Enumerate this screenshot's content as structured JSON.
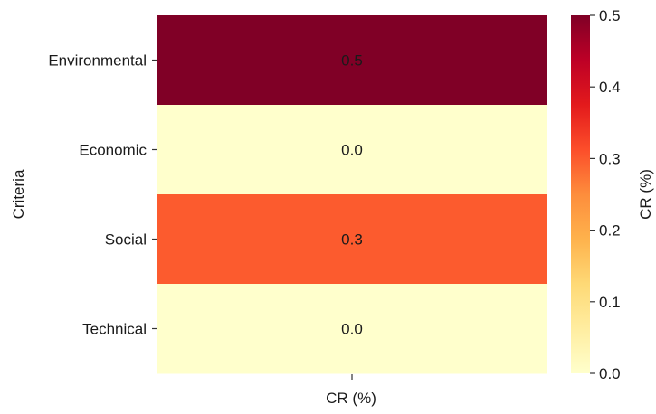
{
  "chart_data": {
    "type": "heatmap",
    "title": "",
    "xlabel": "CR (%)",
    "ylabel": "Criteria",
    "x_categories": [
      ""
    ],
    "y_categories": [
      "Environmental",
      "Economic",
      "Social",
      "Technical"
    ],
    "values": [
      [
        0.5
      ],
      [
        0.0
      ],
      [
        0.3
      ],
      [
        0.0
      ]
    ],
    "cell_labels": [
      "0.5",
      "0.0",
      "0.3",
      "0.0"
    ],
    "colorbar": {
      "label": "CR (%)",
      "range": [
        0.0,
        0.5
      ],
      "ticks": [
        0.0,
        0.1,
        0.2,
        0.3,
        0.4,
        0.5
      ],
      "tick_labels": [
        "0.0",
        "0.1",
        "0.2",
        "0.3",
        "0.4",
        "0.5"
      ],
      "colormap": "YlOrRd",
      "colors": [
        "#ffffcc",
        "#ffeda0",
        "#fed976",
        "#feb24c",
        "#fd8d3c",
        "#fc4e2a",
        "#e31a1c",
        "#bd0026",
        "#800026"
      ]
    }
  }
}
